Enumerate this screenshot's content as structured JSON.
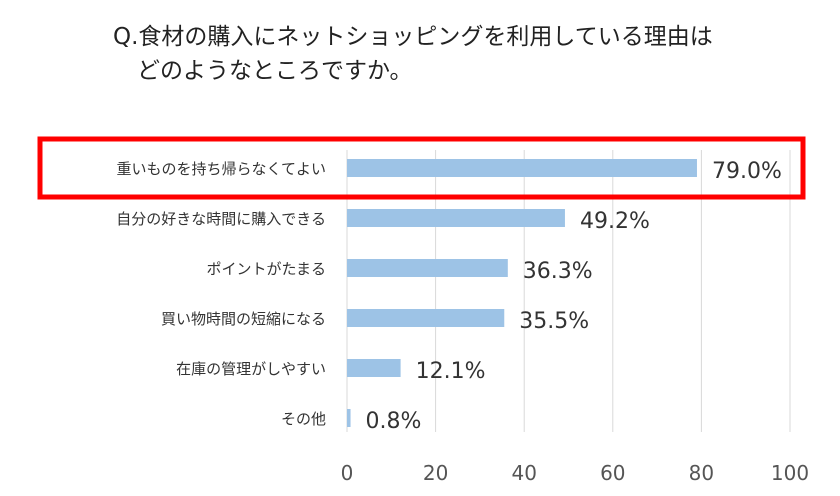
{
  "title": {
    "line1": "Q.食材の購入にネットショッピングを利用している理由は",
    "line2": "どのようなところですか。"
  },
  "colors": {
    "bar": "#9dc3e6",
    "highlight": "#ff0000",
    "grid": "#d9d9d9"
  },
  "chart_data": {
    "type": "bar",
    "orientation": "horizontal",
    "categories": [
      "重いものを持ち帰らなくてよい",
      "自分の好きな時間に購入できる",
      "ポイントがたまる",
      "買い物時間の短縮になる",
      "在庫の管理がしやすい",
      "その他"
    ],
    "values": [
      79.0,
      49.2,
      36.3,
      35.5,
      12.1,
      0.8
    ],
    "value_labels": [
      "79.0%",
      "49.2%",
      "36.3%",
      "35.5%",
      "12.1%",
      "0.8%"
    ],
    "xlim": [
      0,
      100
    ],
    "x_ticks": [
      "0",
      "20",
      "40",
      "60",
      "80",
      "100"
    ],
    "grid": true,
    "highlighted_category_index": 0
  }
}
